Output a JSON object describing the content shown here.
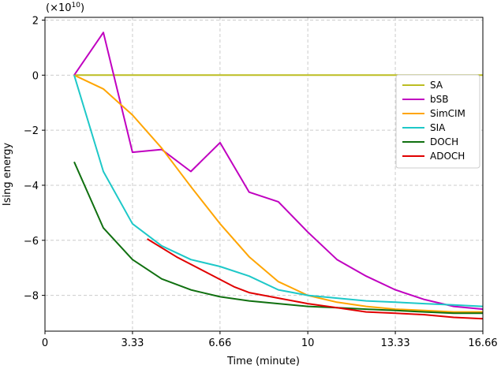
{
  "chart_data": {
    "type": "line",
    "xlabel": "Time (minute)",
    "ylabel": "Ising energy",
    "multiplier_label": "(×10",
    "multiplier_exp": "10",
    "multiplier_close": ")",
    "xlim": [
      0,
      16.66
    ],
    "ylim": [
      -9.3,
      2.1
    ],
    "xticks": [
      0,
      3.33,
      6.66,
      10,
      13.33,
      16.66
    ],
    "xtick_labels": [
      "0",
      "3.33",
      "6.66",
      "10",
      "13.33",
      "16.66"
    ],
    "yticks": [
      2,
      0,
      -2,
      -4,
      -6,
      -8
    ],
    "ytick_labels": [
      "2",
      "0",
      "−2",
      "−4",
      "−6",
      "−8"
    ],
    "grid": true,
    "legend_position": "upper right",
    "series": [
      {
        "name": "SA",
        "color": "#bcbd22",
        "x": [
          1.11,
          16.66
        ],
        "y": [
          0,
          0
        ]
      },
      {
        "name": "bSB",
        "color": "#c000c0",
        "x": [
          1.11,
          2.22,
          3.33,
          4.44,
          5.55,
          6.66,
          7.77,
          8.88,
          10.0,
          11.11,
          12.22,
          13.33,
          14.44,
          15.55,
          16.66
        ],
        "y": [
          0,
          1.55,
          -2.8,
          -2.7,
          -3.5,
          -2.45,
          -4.25,
          -4.6,
          -5.7,
          -6.7,
          -7.3,
          -7.8,
          -8.15,
          -8.4,
          -8.5
        ]
      },
      {
        "name": "SimCIM",
        "color": "#ffa500",
        "x": [
          1.11,
          2.22,
          3.33,
          4.44,
          5.55,
          6.66,
          7.77,
          8.88,
          10.0,
          11.11,
          12.22,
          13.33,
          14.44,
          15.55,
          16.66
        ],
        "y": [
          0,
          -0.5,
          -1.45,
          -2.65,
          -4.05,
          -5.4,
          -6.6,
          -7.5,
          -8.0,
          -8.25,
          -8.4,
          -8.5,
          -8.55,
          -8.6,
          -8.6
        ]
      },
      {
        "name": "SIA",
        "color": "#1ec8c8",
        "x": [
          1.11,
          2.22,
          3.33,
          4.44,
          5.55,
          6.66,
          7.77,
          8.88,
          10.0,
          11.11,
          12.22,
          13.33,
          14.44,
          15.55,
          16.66
        ],
        "y": [
          0,
          -3.5,
          -5.4,
          -6.2,
          -6.7,
          -6.95,
          -7.3,
          -7.8,
          -8.0,
          -8.1,
          -8.2,
          -8.25,
          -8.3,
          -8.35,
          -8.4
        ]
      },
      {
        "name": "DOCH",
        "color": "#107010",
        "x": [
          1.11,
          2.22,
          3.33,
          4.44,
          5.55,
          6.66,
          7.77,
          8.88,
          10.0,
          11.11,
          12.22,
          13.33,
          14.44,
          15.55,
          16.66
        ],
        "y": [
          -3.15,
          -5.55,
          -6.7,
          -7.4,
          -7.8,
          -8.05,
          -8.2,
          -8.3,
          -8.4,
          -8.45,
          -8.5,
          -8.55,
          -8.6,
          -8.65,
          -8.65
        ]
      },
      {
        "name": "ADOCH",
        "color": "#e00000",
        "x": [
          3.89,
          5.0,
          6.11,
          7.22,
          7.77,
          8.88,
          10.0,
          11.11,
          12.22,
          13.33,
          14.44,
          15.55,
          16.66
        ],
        "y": [
          -5.95,
          -6.6,
          -7.15,
          -7.7,
          -7.9,
          -8.1,
          -8.3,
          -8.45,
          -8.6,
          -8.65,
          -8.7,
          -8.8,
          -8.85
        ]
      }
    ]
  }
}
